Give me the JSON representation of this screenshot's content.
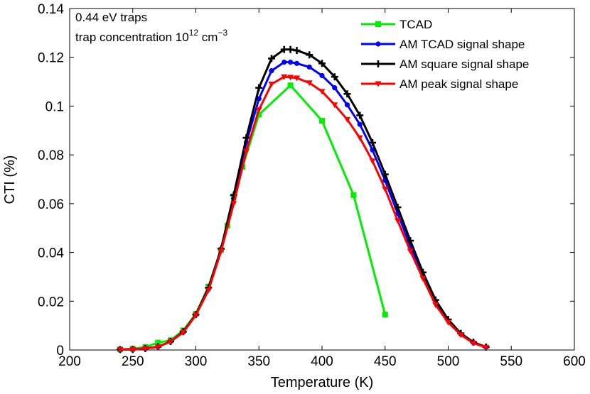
{
  "chart_data": {
    "type": "line",
    "title": "",
    "xlabel": "Temperature (K)",
    "ylabel": "CTI (%)",
    "xlim": [
      200,
      600
    ],
    "ylim": [
      0,
      0.14
    ],
    "xticks": [
      200,
      250,
      300,
      350,
      400,
      450,
      500,
      550,
      600
    ],
    "xtick_labels": [
      "200",
      "250",
      "300",
      "350",
      "400",
      "450",
      "500",
      "550",
      "600"
    ],
    "yticks": [
      0,
      0.02,
      0.04,
      0.06,
      0.08,
      0.1,
      0.12,
      0.14
    ],
    "ytick_labels": [
      "0",
      "0.02",
      "0.04",
      "0.06",
      "0.08",
      "0.1",
      "0.12",
      "0.14"
    ],
    "grid": false,
    "legend_position": "top-right",
    "annotations": {
      "line1": "0.44 eV traps",
      "line2_prefix": "trap concentration 10",
      "line2_exp": "12",
      "line2_unit": " cm",
      "line2_unit_exp": "−3"
    },
    "series": [
      {
        "name": "TCAD",
        "color": "#00ee00",
        "marker": "square",
        "x": [
          240,
          250,
          260,
          270,
          280,
          290,
          300,
          310,
          320,
          325,
          330,
          337,
          350,
          375,
          400,
          425,
          450
        ],
        "values": [
          0.0002,
          0.0005,
          0.0012,
          0.003,
          0.004,
          0.008,
          0.0148,
          0.026,
          0.041,
          0.051,
          0.063,
          0.075,
          0.0965,
          0.1085,
          0.094,
          0.0635,
          0.0145
        ]
      },
      {
        "name": "AM TCAD signal shape",
        "color": "#0000ff",
        "marker": "circle",
        "x": [
          240,
          250,
          260,
          270,
          280,
          290,
          300,
          310,
          320,
          330,
          340,
          350,
          360,
          370,
          375,
          380,
          390,
          400,
          410,
          420,
          430,
          440,
          450,
          460,
          470,
          480,
          490,
          500,
          510,
          520,
          530
        ],
        "values": [
          0.0002,
          0.0002,
          0.0006,
          0.0013,
          0.0035,
          0.0073,
          0.0145,
          0.025,
          0.0412,
          0.062,
          0.085,
          0.103,
          0.1145,
          0.118,
          0.118,
          0.1175,
          0.116,
          0.1125,
          0.1075,
          0.1005,
          0.0925,
          0.082,
          0.0695,
          0.056,
          0.0425,
          0.0305,
          0.0195,
          0.012,
          0.0065,
          0.003,
          0.0012
        ]
      },
      {
        "name": "AM square signal shape",
        "color": "#000000",
        "marker": "plus",
        "x": [
          240,
          250,
          260,
          270,
          280,
          290,
          300,
          310,
          320,
          330,
          340,
          350,
          360,
          370,
          375,
          380,
          390,
          400,
          410,
          420,
          430,
          440,
          450,
          460,
          470,
          480,
          490,
          500,
          510,
          520,
          530
        ],
        "values": [
          0.0002,
          0.0002,
          0.0006,
          0.0013,
          0.0035,
          0.0075,
          0.0145,
          0.0255,
          0.0415,
          0.0635,
          0.087,
          0.1075,
          0.1195,
          0.1232,
          0.1232,
          0.1228,
          0.121,
          0.1175,
          0.112,
          0.105,
          0.0962,
          0.085,
          0.072,
          0.0585,
          0.0448,
          0.0318,
          0.0205,
          0.0125,
          0.0068,
          0.0032,
          0.0012
        ]
      },
      {
        "name": "AM peak signal shape",
        "color": "#ff0000",
        "marker": "triangle-down",
        "x": [
          240,
          250,
          260,
          270,
          280,
          290,
          300,
          310,
          320,
          330,
          340,
          350,
          360,
          370,
          375,
          380,
          390,
          400,
          410,
          420,
          430,
          440,
          450,
          460,
          470,
          480,
          490,
          500,
          510,
          520,
          530
        ],
        "values": [
          0.0002,
          0.0002,
          0.0006,
          0.0013,
          0.0035,
          0.0072,
          0.0143,
          0.0245,
          0.0405,
          0.06,
          0.0815,
          0.0985,
          0.109,
          0.112,
          0.1118,
          0.1115,
          0.1095,
          0.106,
          0.1005,
          0.0945,
          0.087,
          0.0775,
          0.066,
          0.053,
          0.0405,
          0.0293,
          0.0185,
          0.0113,
          0.0062,
          0.0028,
          0.0011
        ]
      }
    ]
  }
}
